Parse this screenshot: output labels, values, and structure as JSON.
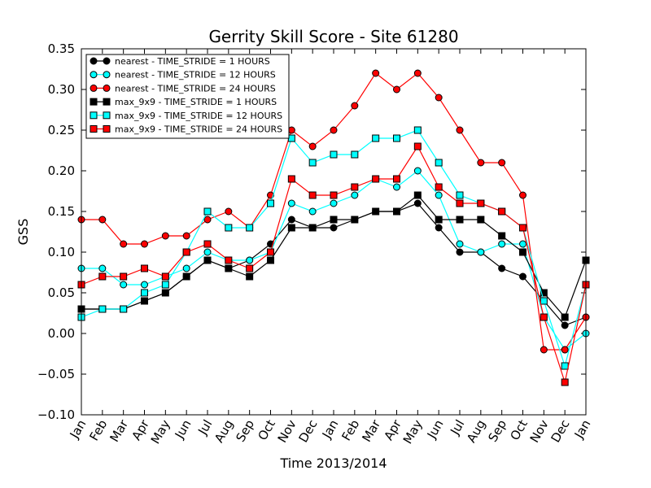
{
  "chart_data": {
    "type": "line",
    "title": "Gerrity Skill Score - Site 61280",
    "xlabel": "Time 2013/2014",
    "ylabel": "GSS",
    "categories": [
      "Jan",
      "Feb",
      "Mar",
      "Apr",
      "May",
      "Jun",
      "Jul",
      "Aug",
      "Sep",
      "Oct",
      "Nov",
      "Dec",
      "Jan",
      "Feb",
      "Mar",
      "Apr",
      "May",
      "Jun",
      "Jul",
      "Aug",
      "Sep",
      "Oct",
      "Nov",
      "Dec",
      "Jan"
    ],
    "ylim": [
      -0.1,
      0.35
    ],
    "yticks": [
      "0.35",
      "0.30",
      "0.25",
      "0.20",
      "0.15",
      "0.10",
      "0.05",
      "0.00",
      "−0.05",
      "−0.10"
    ],
    "legend_position": "upper-left",
    "grid": false,
    "series": [
      {
        "name": "nearest - TIME_STRIDE = 1 HOURS",
        "color": "#000000",
        "marker": "circle",
        "values": [
          0.03,
          0.03,
          0.03,
          0.04,
          0.05,
          0.07,
          0.09,
          0.08,
          0.09,
          0.11,
          0.14,
          0.13,
          0.13,
          0.14,
          0.15,
          0.15,
          0.16,
          0.13,
          0.1,
          0.1,
          0.08,
          0.07,
          0.04,
          0.01,
          0.02
        ]
      },
      {
        "name": "nearest - TIME_STRIDE = 12 HOURS",
        "color": "#00ffff",
        "marker": "circle",
        "values": [
          0.08,
          0.08,
          0.06,
          0.06,
          0.07,
          0.08,
          0.1,
          0.09,
          0.09,
          0.1,
          0.16,
          0.15,
          0.16,
          0.17,
          0.19,
          0.18,
          0.2,
          0.17,
          0.11,
          0.1,
          0.11,
          0.11,
          0.02,
          -0.02,
          0.0
        ]
      },
      {
        "name": "nearest - TIME_STRIDE = 24 HOURS",
        "color": "#ff0000",
        "marker": "circle",
        "values": [
          0.14,
          0.14,
          0.11,
          0.11,
          0.12,
          0.12,
          0.14,
          0.15,
          0.13,
          0.17,
          0.25,
          0.23,
          0.25,
          0.28,
          0.32,
          0.3,
          0.32,
          0.29,
          0.25,
          0.21,
          0.21,
          0.17,
          -0.02,
          -0.02,
          0.02
        ]
      },
      {
        "name": "max_9x9 - TIME_STRIDE = 1 HOURS",
        "color": "#000000",
        "marker": "square",
        "values": [
          0.03,
          0.03,
          0.03,
          0.04,
          0.05,
          0.07,
          0.09,
          0.08,
          0.07,
          0.09,
          0.13,
          0.13,
          0.14,
          0.14,
          0.15,
          0.15,
          0.17,
          0.14,
          0.14,
          0.14,
          0.12,
          0.1,
          0.05,
          0.02,
          0.09
        ]
      },
      {
        "name": "max_9x9 - TIME_STRIDE = 12 HOURS",
        "color": "#00ffff",
        "marker": "square",
        "values": [
          0.02,
          0.03,
          0.03,
          0.05,
          0.06,
          0.1,
          0.15,
          0.13,
          0.13,
          0.16,
          0.24,
          0.21,
          0.22,
          0.22,
          0.24,
          0.24,
          0.25,
          0.21,
          0.17,
          0.16,
          0.15,
          0.13,
          0.04,
          -0.04,
          0.06
        ]
      },
      {
        "name": "max_9x9 - TIME_STRIDE = 24 HOURS",
        "color": "#ff0000",
        "marker": "square",
        "values": [
          0.06,
          0.07,
          0.07,
          0.08,
          0.07,
          0.1,
          0.11,
          0.09,
          0.08,
          0.1,
          0.19,
          0.17,
          0.17,
          0.18,
          0.19,
          0.19,
          0.23,
          0.18,
          0.16,
          0.16,
          0.15,
          0.13,
          0.02,
          -0.06,
          0.06
        ]
      }
    ]
  }
}
